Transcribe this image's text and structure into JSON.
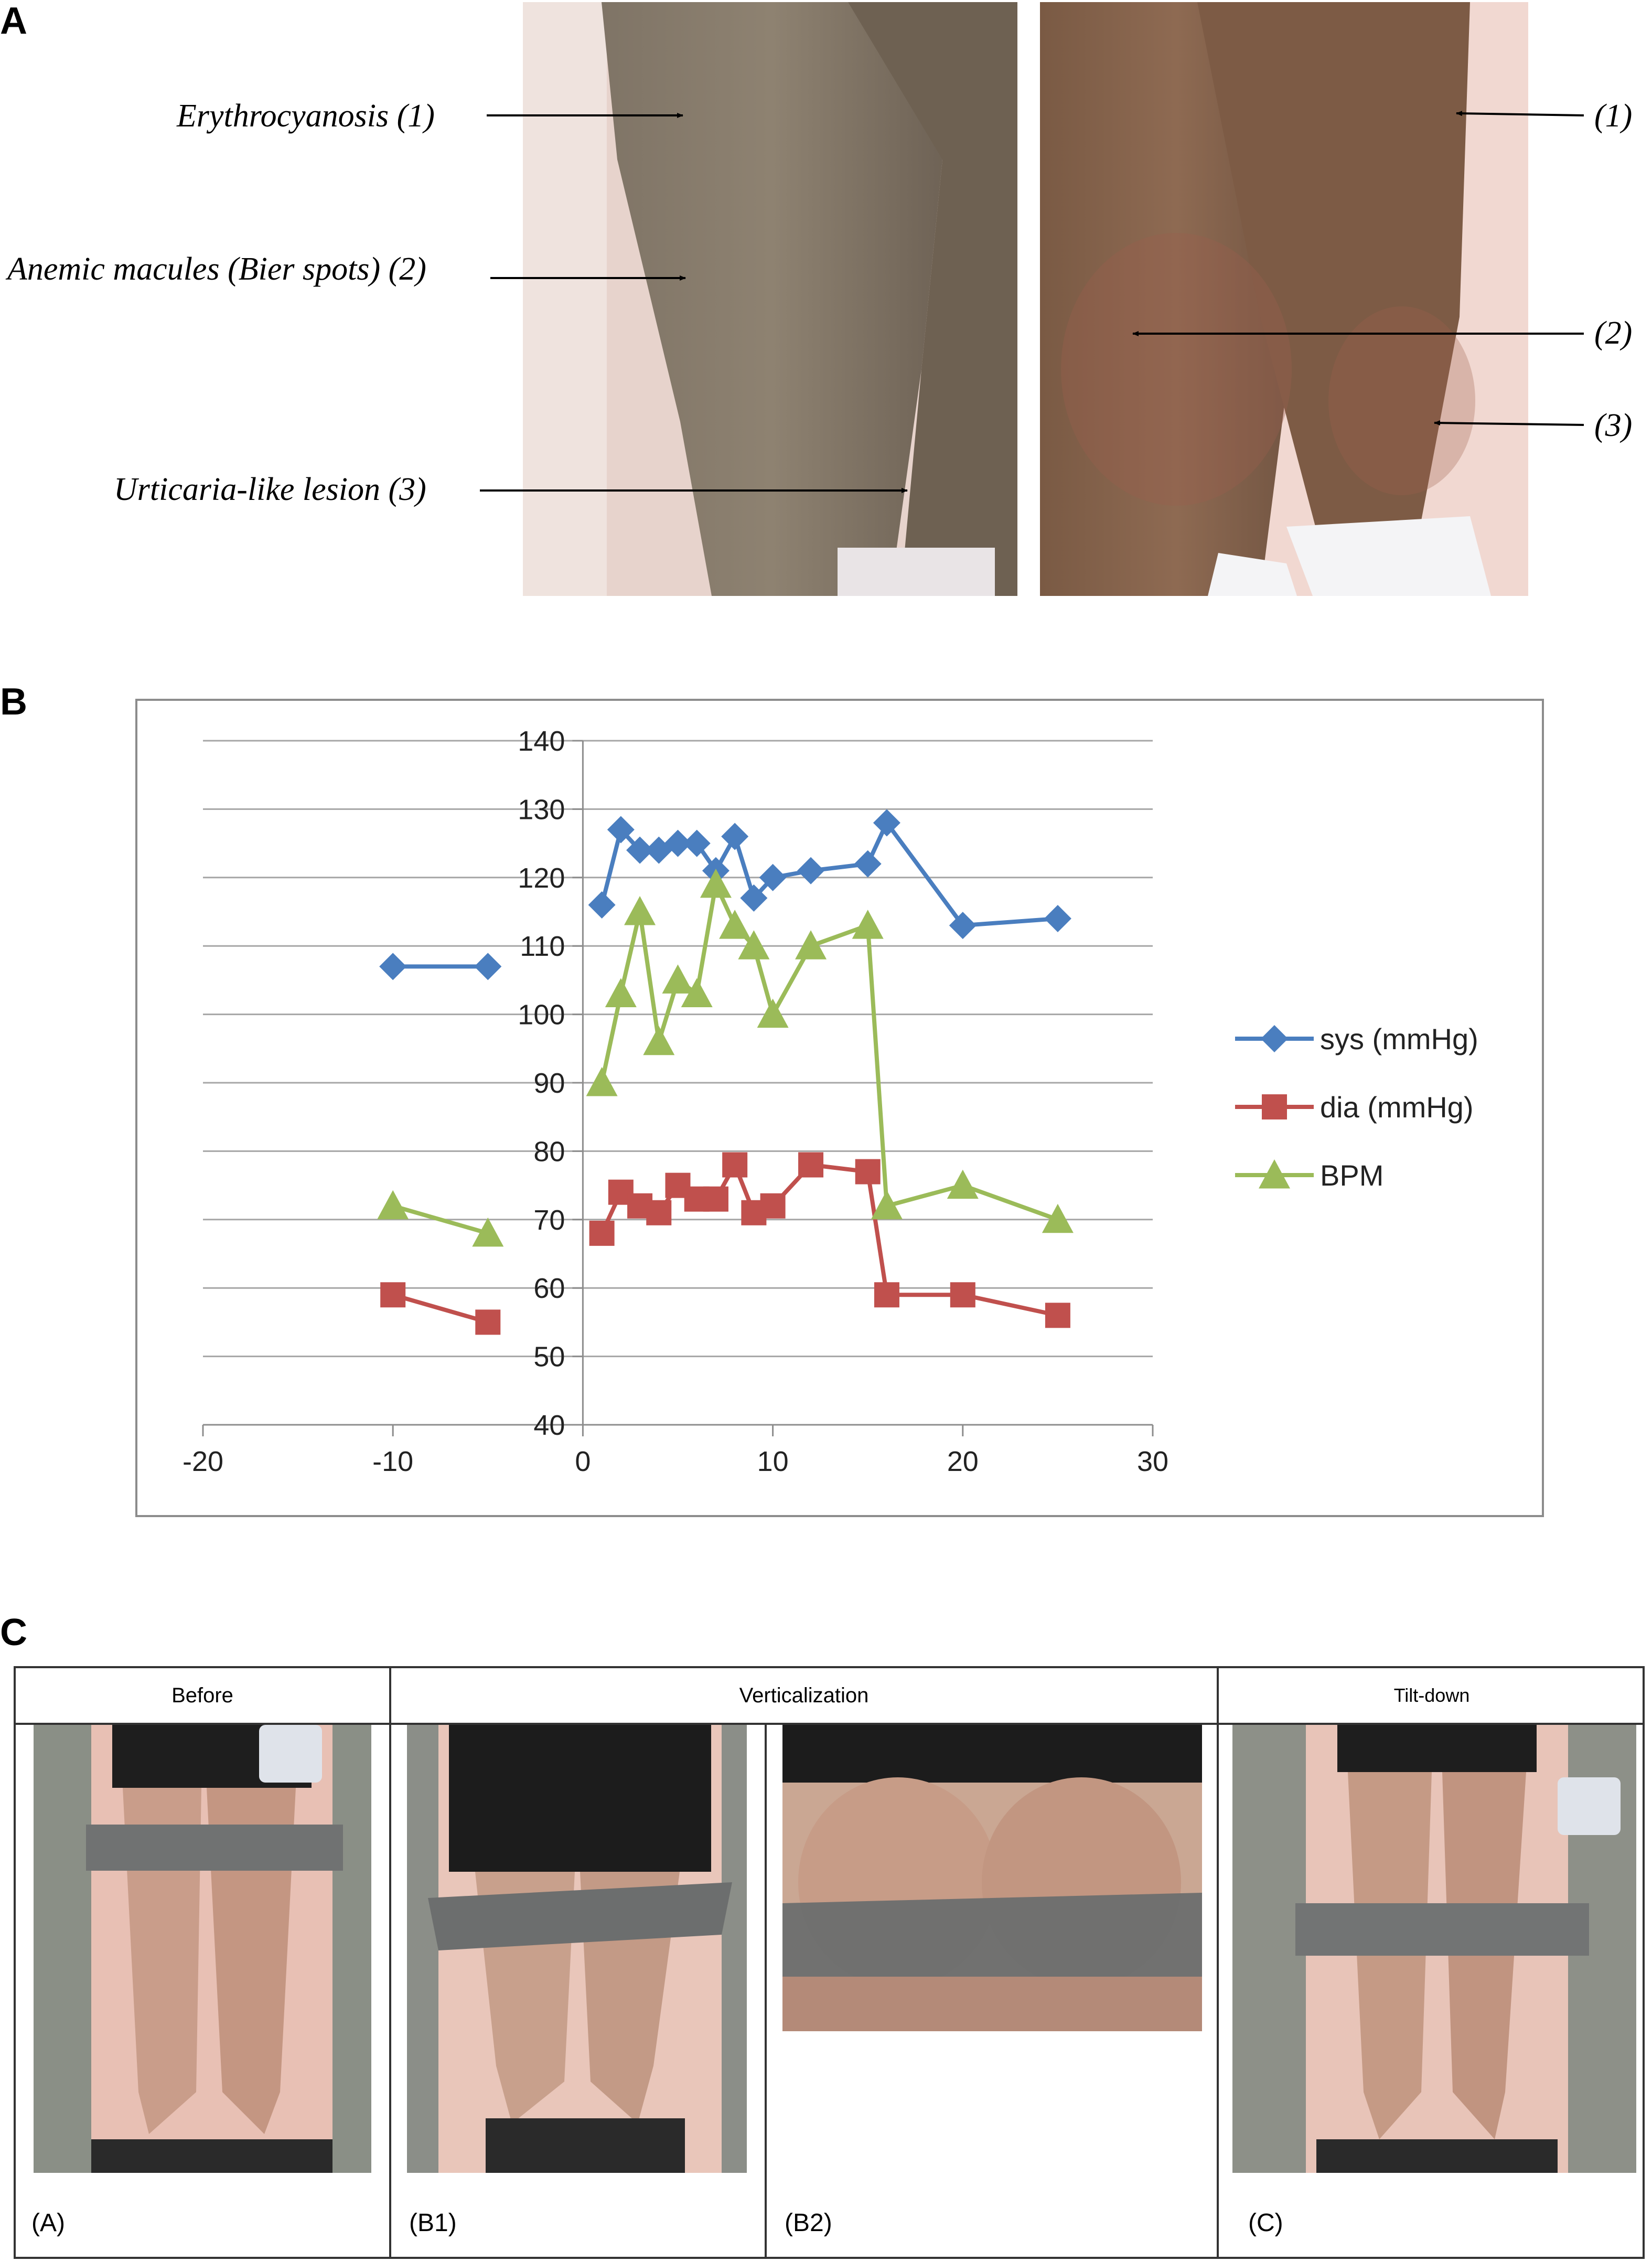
{
  "panelA": {
    "letter": "A",
    "annotations_left": [
      "Erythrocyanosis (1)",
      "Anemic macules (Bier spots) (2)",
      "Urticaria-like lesion (3)"
    ],
    "annotations_right": [
      "(1)",
      "(2)",
      "(3)"
    ]
  },
  "panelB": {
    "letter": "B"
  },
  "chart_data": {
    "type": "line",
    "title": "",
    "xlabel": "",
    "ylabel": "",
    "xlim": [
      -20,
      30
    ],
    "ylim": [
      40,
      140
    ],
    "x_ticks": [
      -20,
      -10,
      0,
      10,
      20,
      30
    ],
    "y_ticks": [
      40,
      50,
      60,
      70,
      80,
      90,
      100,
      110,
      120,
      130,
      140
    ],
    "grid": true,
    "legend_position": "right",
    "series": [
      {
        "name": "sys (mmHg)",
        "color": "#4a7ebf",
        "marker": "diamond",
        "segments": [
          [
            [
              -10,
              107
            ],
            [
              -5,
              107
            ]
          ],
          [
            [
              1,
              116
            ],
            [
              2,
              127
            ],
            [
              3,
              124
            ],
            [
              4,
              124
            ],
            [
              5,
              125
            ],
            [
              6,
              125
            ],
            [
              7,
              121
            ],
            [
              8,
              126
            ],
            [
              9,
              117
            ],
            [
              10,
              120
            ],
            [
              12,
              121
            ],
            [
              15,
              122
            ],
            [
              16,
              128
            ],
            [
              20,
              113
            ],
            [
              25,
              114
            ]
          ]
        ]
      },
      {
        "name": "dia (mmHg)",
        "color": "#c0504d",
        "marker": "square",
        "segments": [
          [
            [
              -10,
              59
            ],
            [
              -5,
              55
            ]
          ],
          [
            [
              1,
              68
            ],
            [
              2,
              74
            ],
            [
              3,
              72
            ],
            [
              4,
              71
            ],
            [
              5,
              75
            ],
            [
              6,
              73
            ],
            [
              7,
              73
            ],
            [
              8,
              78
            ],
            [
              9,
              71
            ],
            [
              10,
              72
            ],
            [
              12,
              78
            ],
            [
              15,
              77
            ],
            [
              16,
              59
            ],
            [
              20,
              59
            ],
            [
              25,
              56
            ]
          ]
        ]
      },
      {
        "name": "BPM",
        "color": "#9bbb59",
        "marker": "triangle",
        "segments": [
          [
            [
              -10,
              72
            ],
            [
              -5,
              68
            ]
          ],
          [
            [
              1,
              90
            ],
            [
              2,
              103
            ],
            [
              3,
              115
            ],
            [
              4,
              96
            ],
            [
              5,
              105
            ],
            [
              6,
              103
            ],
            [
              7,
              119
            ],
            [
              8,
              113
            ],
            [
              9,
              110
            ],
            [
              10,
              100
            ],
            [
              12,
              110
            ],
            [
              15,
              113
            ],
            [
              16,
              72
            ],
            [
              20,
              75
            ],
            [
              25,
              70
            ]
          ]
        ]
      }
    ]
  },
  "panelC": {
    "letter": "C",
    "headers": {
      "before": "Before",
      "verticalization": "Verticalization",
      "tilt_down": "Tilt-down"
    },
    "captions": [
      "(A)",
      "(B1)",
      "(B2)",
      "(C)"
    ]
  }
}
